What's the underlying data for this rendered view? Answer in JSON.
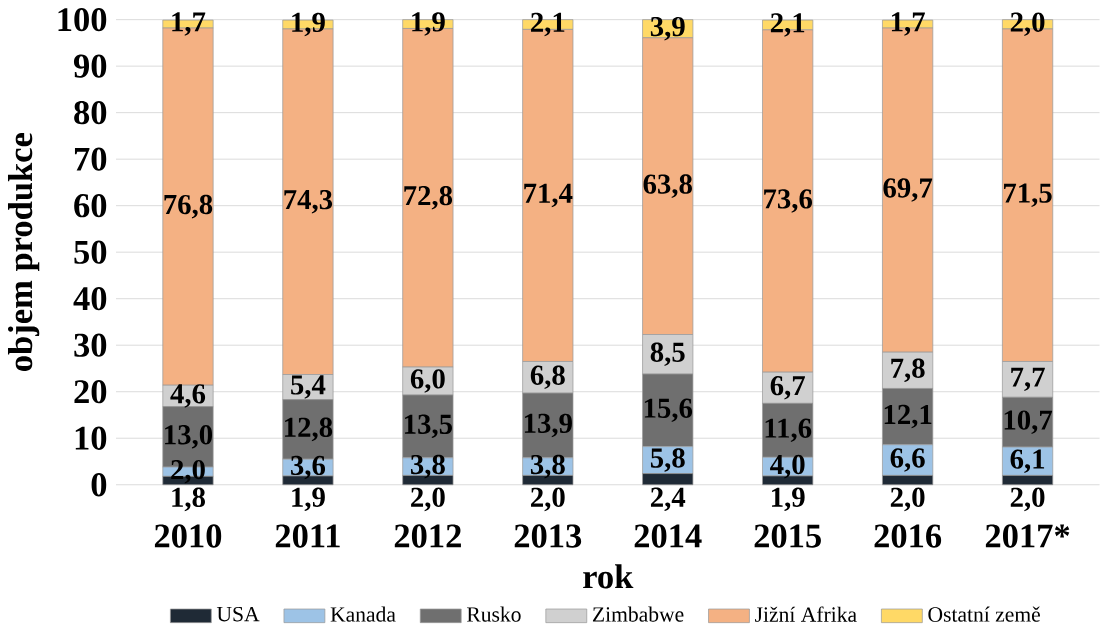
{
  "chart_data": {
    "type": "bar",
    "stacked": true,
    "xlabel": "rok",
    "ylabel": "objem produkce",
    "categories": [
      "2010",
      "2011",
      "2012",
      "2013",
      "2014",
      "2015",
      "2016",
      "2017*"
    ],
    "ylim": [
      0,
      100
    ],
    "yticks": [
      0,
      10,
      20,
      30,
      40,
      50,
      60,
      70,
      80,
      90,
      100
    ],
    "grid": "y",
    "legend": "bottom",
    "series": [
      {
        "name": "USA",
        "color": "#1f2a36",
        "values": [
          1.8,
          1.9,
          2.0,
          2.0,
          2.4,
          1.9,
          2.0,
          2.0
        ],
        "value_labels": [
          "1,8",
          "1,9",
          "2,0",
          "2,0",
          "2,4",
          "1,9",
          "2,0",
          "2,0"
        ]
      },
      {
        "name": "Kanada",
        "color": "#9dc3e6",
        "values": [
          2.0,
          3.6,
          3.8,
          3.8,
          5.8,
          4.0,
          6.6,
          6.1
        ],
        "value_labels": [
          "2,0",
          "3,6",
          "3,8",
          "3,8",
          "5,8",
          "4,0",
          "6,6",
          "6,1"
        ]
      },
      {
        "name": "Rusko",
        "color": "#6f6f6f",
        "values": [
          13.0,
          12.8,
          13.5,
          13.9,
          15.6,
          11.6,
          12.1,
          10.7
        ],
        "value_labels": [
          "13,0",
          "12,8",
          "13,5",
          "13,9",
          "15,6",
          "11,6",
          "12,1",
          "10,7"
        ]
      },
      {
        "name": "Zimbabwe",
        "color": "#d0d0d0",
        "values": [
          4.6,
          5.4,
          6.0,
          6.8,
          8.5,
          6.7,
          7.8,
          7.7
        ],
        "value_labels": [
          "4,6",
          "5,4",
          "6,0",
          "6,8",
          "8,5",
          "6,7",
          "7,8",
          "7,7"
        ]
      },
      {
        "name": "Jižní Afrika",
        "color": "#f4b183",
        "values": [
          76.8,
          74.3,
          72.8,
          71.4,
          63.8,
          73.6,
          69.7,
          71.5
        ],
        "value_labels": [
          "76,8",
          "74,3",
          "72,8",
          "71,4",
          "63,8",
          "73,6",
          "69,7",
          "71,5"
        ]
      },
      {
        "name": "Ostatní země",
        "color": "#ffd966",
        "values": [
          1.7,
          1.9,
          1.9,
          2.1,
          3.9,
          2.1,
          1.7,
          2.0
        ],
        "value_labels": [
          "1,7",
          "1,9",
          "1,9",
          "2,1",
          "3,9",
          "2,1",
          "1,7",
          "2,0"
        ]
      }
    ]
  }
}
